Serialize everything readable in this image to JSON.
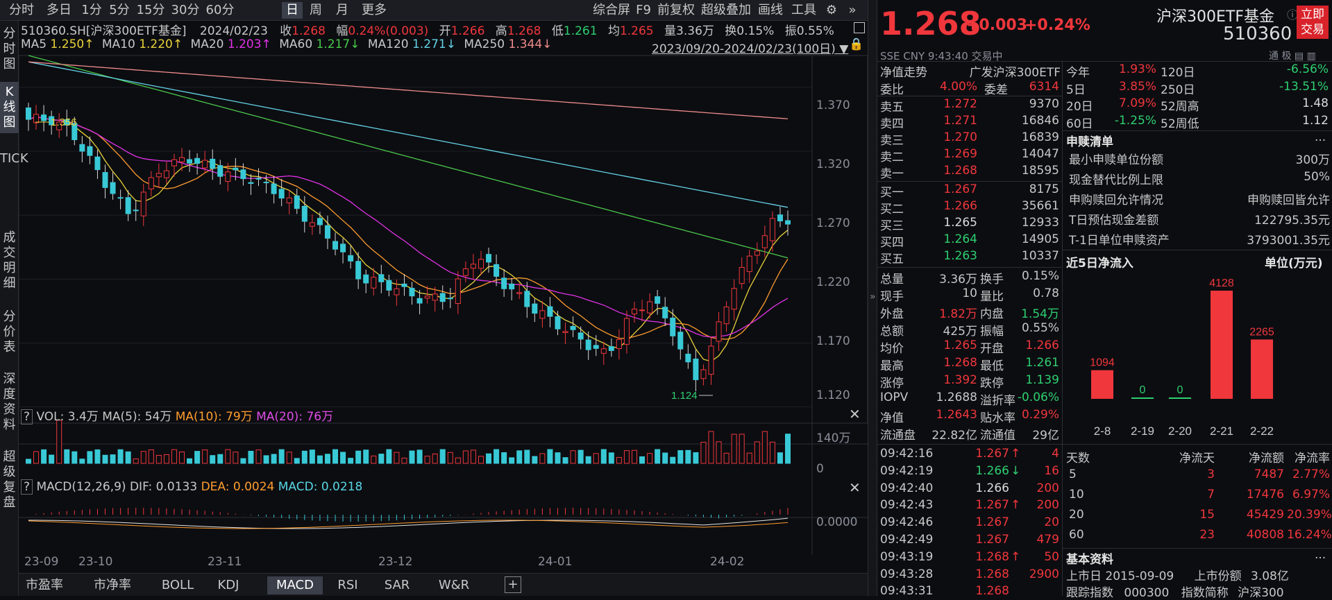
{
  "toolbar": {
    "periods": [
      "分时",
      "多日",
      "1分",
      "5分",
      "15分",
      "30分",
      "60分",
      "日",
      "周",
      "月",
      "更多"
    ],
    "selected": "日",
    "right": [
      "综合屏",
      "F9",
      "前复权",
      "超级叠加",
      "画线",
      "工具"
    ]
  },
  "leftbar": [
    "分时图",
    "K线图",
    "TICK",
    "成交明细",
    "分价表",
    "深度资料",
    "超级复盘"
  ],
  "info_row": {
    "code": "510360.SH[沪深300ETF基金]",
    "date": "2024/02/23",
    "close_label": "收",
    "close": "1.268",
    "chg_label": "幅",
    "chg": "0.24%(0.003)",
    "open_label": "开",
    "open": "1.266",
    "high_label": "高",
    "high": "1.268",
    "low_label": "低",
    "low": "1.261",
    "avg_label": "均",
    "avg": "1.265",
    "vol_label": "量",
    "vol": "3.36万",
    "turn_label": "换",
    "turn": "0.15%",
    "amp_label": "振",
    "amp": "0.55%"
  },
  "ma_row": {
    "ma5": "MA5",
    "ma5v": "1.250↑",
    "ma10": "MA10",
    "ma10v": "1.220↑",
    "ma20": "MA20",
    "ma20v": "1.203↑",
    "ma60": "MA60",
    "ma60v": "1.217↓",
    "ma120": "MA120",
    "ma120v": "1.271↓",
    "ma250": "MA250",
    "ma250v": "1.344↓",
    "range": "2023/09/20-2024/02/23(100日)"
  },
  "yaxis": [
    "1.370",
    "1.320",
    "1.270",
    "1.220",
    "1.170",
    "1.120"
  ],
  "annot": {
    "high": "1.356",
    "low": "1.124"
  },
  "vol_row": {
    "q": "?",
    "vol": "VOL: 3.4万",
    "ma5": "MA(5): 54万",
    "ma10": "MA(10): 79万",
    "ma20": "MA(20): 76万",
    "ymax": "140万",
    "ymin": "0"
  },
  "macd_row": {
    "q": "?",
    "name": "MACD(12,26,9)",
    "dif": "DIF: 0.0133",
    "dea": "DEA: 0.0024",
    "macd": "MACD: 0.0218",
    "y": "0.0000"
  },
  "xaxis": [
    "23-09",
    "23-10",
    "23-11",
    "23-12",
    "24-01",
    "24-02"
  ],
  "bottom_tabs": [
    "市盈率",
    "市净率",
    "BOLL",
    "KDJ",
    "MACD",
    "RSI",
    "SAR",
    "W&R"
  ],
  "bottom_selected": "MACD",
  "quote": {
    "price": "1.268",
    "chg": "+0.003",
    "pct": "+0.24%",
    "name": "沪深300ETF基金",
    "code": "510360",
    "trade_btn": "立即交易",
    "market": "SSE  CNY  9:43:40  交易中",
    "nav_trend": "净值走势",
    "fund": "广发沪深300ETF"
  },
  "book": {
    "wb_label": "委比",
    "wb": "4.00%",
    "wc_label": "委差",
    "wc": "6314",
    "asks": [
      [
        "卖五",
        "1.272",
        "9370"
      ],
      [
        "卖四",
        "1.271",
        "16846"
      ],
      [
        "卖三",
        "1.270",
        "16839"
      ],
      [
        "卖二",
        "1.269",
        "14047"
      ],
      [
        "卖一",
        "1.268",
        "18595"
      ]
    ],
    "bids": [
      [
        "买一",
        "1.267",
        "8175"
      ],
      [
        "买二",
        "1.266",
        "35661"
      ],
      [
        "买三",
        "1.265",
        "12933"
      ],
      [
        "买四",
        "1.264",
        "14905"
      ],
      [
        "买五",
        "1.263",
        "10337"
      ]
    ]
  },
  "stats": [
    [
      "总量",
      "3.36万",
      "换手",
      "0.15%"
    ],
    [
      "现手",
      "10",
      "量比",
      "0.78"
    ],
    [
      "外盘",
      "1.82万",
      "内盘",
      "1.54万"
    ],
    [
      "总额",
      "425万",
      "振幅",
      "0.55%"
    ],
    [
      "均价",
      "1.265",
      "开盘",
      "1.266"
    ],
    [
      "最高",
      "1.268",
      "最低",
      "1.261"
    ],
    [
      "涨停",
      "1.392",
      "跌停",
      "1.139"
    ],
    [
      "IOPV",
      "1.2688",
      "溢折率",
      "-0.06%"
    ],
    [
      "净值",
      "1.2643",
      "贴水率",
      "0.29%"
    ],
    [
      "流通盘",
      "22.82亿",
      "流通值",
      "29亿"
    ]
  ],
  "ticks": [
    [
      "09:42:16",
      "1.267",
      "↑",
      "4"
    ],
    [
      "09:42:19",
      "1.266",
      "↓",
      "16"
    ],
    [
      "09:42:40",
      "1.266",
      "",
      "200"
    ],
    [
      "09:42:43",
      "1.267",
      "↑",
      "200"
    ],
    [
      "09:42:46",
      "1.267",
      "",
      "20"
    ],
    [
      "09:42:49",
      "1.267",
      "",
      "479"
    ],
    [
      "09:43:19",
      "1.268",
      "↑",
      "50"
    ],
    [
      "09:43:28",
      "1.268",
      "",
      "2900"
    ],
    [
      "09:43:31",
      "1.268",
      "",
      ""
    ]
  ],
  "perf": [
    [
      "今年",
      "1.93%",
      "120日",
      "-6.56%"
    ],
    [
      "5日",
      "3.85%",
      "250日",
      "-13.51%"
    ],
    [
      "20日",
      "7.09%",
      "52周高",
      "1.48"
    ],
    [
      "60日",
      "-1.25%",
      "52周低",
      "1.12"
    ]
  ],
  "subscribe": {
    "title": "申赎清单",
    "more": "...",
    "rows": [
      [
        "最小申赎单位份额",
        "300万"
      ],
      [
        "现金替代比例上限",
        "50%"
      ],
      [
        "申购赎回允许情况",
        "申购赎回皆允许"
      ],
      [
        "T日预估现金差额",
        "122795.35元"
      ],
      [
        "T-1日单位申赎资产",
        "3793001.35元"
      ]
    ]
  },
  "flow": {
    "title": "近5日净流入",
    "unit": "单位(万元)",
    "dates": [
      "2-8",
      "2-19",
      "2-20",
      "2-21",
      "2-22"
    ],
    "values": [
      1094,
      0,
      0,
      4128,
      2265
    ]
  },
  "flow_table": {
    "headers": [
      "天数",
      "净流天",
      "净流额",
      "净流率"
    ],
    "rows": [
      [
        "5",
        "3",
        "7487",
        "2.77%"
      ],
      [
        "10",
        "7",
        "17476",
        "6.97%"
      ],
      [
        "20",
        "15",
        "45429",
        "20.39%"
      ],
      [
        "60",
        "23",
        "40808",
        "16.24%"
      ]
    ]
  },
  "basic": {
    "title": "基本资料",
    "more": "...",
    "row1": [
      "上市日",
      "2015-09-09",
      "上市份额",
      "3.08亿"
    ],
    "row2": [
      "跟踪指数",
      "000300",
      "指数简称",
      "沪深300"
    ]
  },
  "colors": {
    "up": "#f0373c",
    "down": "#2ed070",
    "candle_down": "#39c9d6",
    "bg": "#0c0d11"
  }
}
